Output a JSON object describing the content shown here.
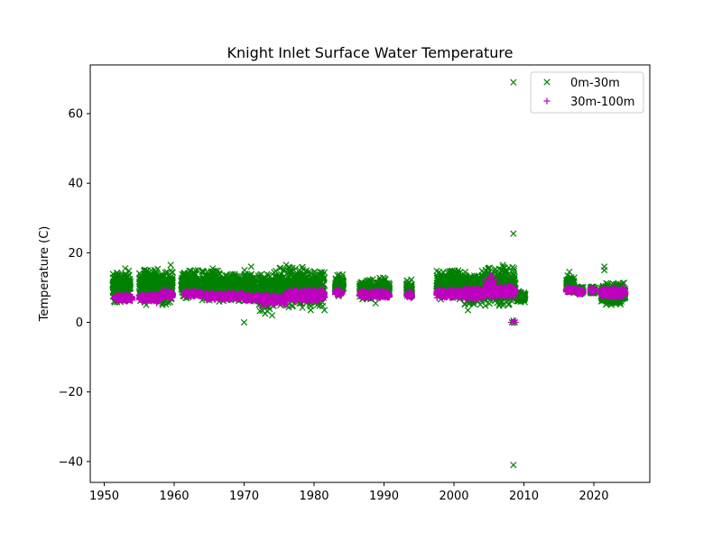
{
  "chart_data": {
    "type": "scatter",
    "title": "Knight Inlet Surface Water Temperature",
    "xlabel": "",
    "ylabel": "Temperature (C)",
    "xlim": [
      1948,
      2028
    ],
    "ylim": [
      -46,
      74
    ],
    "xticks": [
      1950,
      1960,
      1970,
      1980,
      1990,
      2000,
      2010,
      2020
    ],
    "yticks": [
      -40,
      -20,
      0,
      20,
      40,
      60
    ],
    "ytick_labels": [
      "−40",
      "−20",
      "0",
      "20",
      "40",
      "60"
    ],
    "grid": false,
    "legend_position": "top-right",
    "series": [
      {
        "name": "0m-30m",
        "marker": "x",
        "color": "#008000",
        "ranges": [
          {
            "x0": 1951.2,
            "x1": 1953.8,
            "ymin": 5.5,
            "ymax": 15.0
          },
          {
            "x0": 1955.0,
            "x1": 1959.8,
            "ymin": 5.0,
            "ymax": 15.5
          },
          {
            "x0": 1961.0,
            "x1": 1963.5,
            "ymin": 7.0,
            "ymax": 15.0
          },
          {
            "x0": 1964.0,
            "x1": 1966.5,
            "ymin": 6.0,
            "ymax": 15.0
          },
          {
            "x0": 1966.5,
            "x1": 1969.8,
            "ymin": 6.0,
            "ymax": 14.0
          },
          {
            "x0": 1970.0,
            "x1": 1971.5,
            "ymin": 6.0,
            "ymax": 15.0
          },
          {
            "x0": 1972.0,
            "x1": 1974.5,
            "ymin": 3.0,
            "ymax": 14.5
          },
          {
            "x0": 1974.5,
            "x1": 1977.5,
            "ymin": 4.0,
            "ymax": 16.0
          },
          {
            "x0": 1977.5,
            "x1": 1981.5,
            "ymin": 3.5,
            "ymax": 16.0
          },
          {
            "x0": 1983.0,
            "x1": 1984.2,
            "ymin": 7.5,
            "ymax": 14.0
          },
          {
            "x0": 1986.5,
            "x1": 1988.5,
            "ymin": 6.5,
            "ymax": 12.5
          },
          {
            "x0": 1989.0,
            "x1": 1990.8,
            "ymin": 7.0,
            "ymax": 13.0
          },
          {
            "x0": 1993.2,
            "x1": 1994.0,
            "ymin": 7.0,
            "ymax": 12.5
          },
          {
            "x0": 1997.5,
            "x1": 2001.5,
            "ymin": 6.5,
            "ymax": 15.0
          },
          {
            "x0": 2001.5,
            "x1": 2004.0,
            "ymin": 5.0,
            "ymax": 14.5
          },
          {
            "x0": 2004.0,
            "x1": 2008.8,
            "ymin": 4.5,
            "ymax": 16.0
          },
          {
            "x0": 2009.0,
            "x1": 2010.2,
            "ymin": 5.5,
            "ymax": 9.0
          },
          {
            "x0": 2016.0,
            "x1": 2017.2,
            "ymin": 8.5,
            "ymax": 13.5
          },
          {
            "x0": 2017.5,
            "x1": 2018.5,
            "ymin": 8.0,
            "ymax": 10.5
          },
          {
            "x0": 2019.5,
            "x1": 2020.2,
            "ymin": 8.0,
            "ymax": 10.5
          },
          {
            "x0": 2021.0,
            "x1": 2024.5,
            "ymin": 5.0,
            "ymax": 11.5
          }
        ],
        "points": [
          [
            2008.5,
            69.0
          ],
          [
            2008.5,
            25.5
          ],
          [
            2008.5,
            -41.0
          ],
          [
            1970.0,
            0.0
          ],
          [
            2008.5,
            0.5
          ],
          [
            2008.7,
            0.0
          ],
          [
            2008.3,
            0.0
          ],
          [
            2002.0,
            3.5
          ],
          [
            1959.5,
            16.5
          ],
          [
            1976.0,
            16.5
          ],
          [
            1965.5,
            15.5
          ],
          [
            1971.0,
            16.0
          ],
          [
            2021.5,
            16.0
          ],
          [
            2021.5,
            15.0
          ],
          [
            2016.5,
            14.5
          ],
          [
            1988.8,
            5.5
          ],
          [
            1953.0,
            15.5
          ],
          [
            1961.5,
            14.0
          ],
          [
            2007.0,
            16.5
          ],
          [
            1974.0,
            2.0
          ],
          [
            1973.0,
            2.5
          ],
          [
            1967.5,
            13.5
          ],
          [
            2000.5,
            14.0
          ]
        ]
      },
      {
        "name": "30m-100m",
        "marker": "+",
        "color": "#bf00bf",
        "ranges": [
          {
            "x0": 1951.5,
            "x1": 1954.0,
            "ymin": 6.0,
            "ymax": 8.0
          },
          {
            "x0": 1955.0,
            "x1": 1958.0,
            "ymin": 6.0,
            "ymax": 8.0
          },
          {
            "x0": 1958.0,
            "x1": 1959.8,
            "ymin": 7.0,
            "ymax": 9.0
          },
          {
            "x0": 1961.5,
            "x1": 1964.0,
            "ymin": 7.5,
            "ymax": 9.0
          },
          {
            "x0": 1964.5,
            "x1": 1970.0,
            "ymin": 6.5,
            "ymax": 8.5
          },
          {
            "x0": 1970.0,
            "x1": 1972.5,
            "ymin": 6.0,
            "ymax": 8.0
          },
          {
            "x0": 1972.5,
            "x1": 1976.0,
            "ymin": 5.0,
            "ymax": 8.0
          },
          {
            "x0": 1976.0,
            "x1": 1981.5,
            "ymin": 6.0,
            "ymax": 9.5
          },
          {
            "x0": 1983.0,
            "x1": 1984.0,
            "ymin": 7.5,
            "ymax": 9.5
          },
          {
            "x0": 1986.5,
            "x1": 1990.8,
            "ymin": 7.0,
            "ymax": 9.0
          },
          {
            "x0": 1993.2,
            "x1": 1994.0,
            "ymin": 7.0,
            "ymax": 9.0
          },
          {
            "x0": 1997.5,
            "x1": 2001.5,
            "ymin": 7.0,
            "ymax": 9.5
          },
          {
            "x0": 2001.5,
            "x1": 2004.5,
            "ymin": 6.5,
            "ymax": 10.0
          },
          {
            "x0": 2004.5,
            "x1": 2006.0,
            "ymin": 7.0,
            "ymax": 12.5
          },
          {
            "x0": 2006.0,
            "x1": 2008.8,
            "ymin": 7.0,
            "ymax": 10.5
          },
          {
            "x0": 2016.0,
            "x1": 2017.5,
            "ymin": 8.5,
            "ymax": 10.0
          },
          {
            "x0": 2017.5,
            "x1": 2018.5,
            "ymin": 8.0,
            "ymax": 9.5
          },
          {
            "x0": 2019.5,
            "x1": 2020.2,
            "ymin": 8.5,
            "ymax": 10.0
          },
          {
            "x0": 2021.0,
            "x1": 2024.5,
            "ymin": 7.0,
            "ymax": 10.0
          }
        ],
        "points": [
          [
            2008.5,
            0.0
          ],
          [
            2008.2,
            0.0
          ],
          [
            2008.8,
            0.0
          ],
          [
            2008.6,
            0.5
          ],
          [
            2005.2,
            13.5
          ],
          [
            2005.5,
            13.0
          ],
          [
            2005.0,
            12.5
          ],
          [
            1957.5,
            5.5
          ],
          [
            1972.5,
            4.5
          ],
          [
            1958.5,
            9.5
          ]
        ]
      }
    ]
  }
}
